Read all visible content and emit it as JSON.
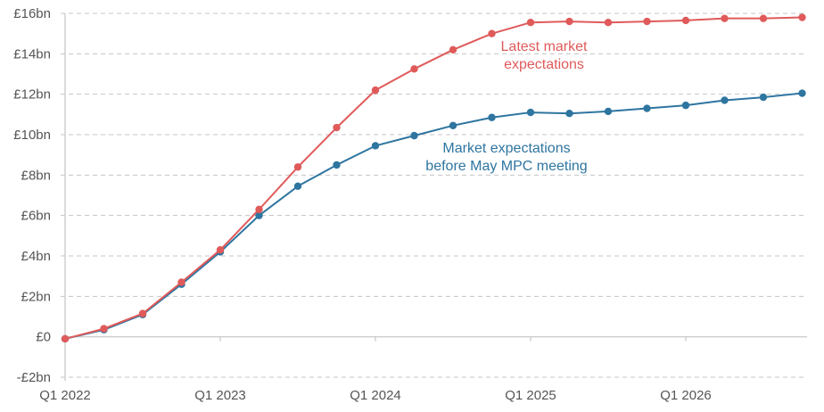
{
  "chart_data": {
    "type": "line",
    "title": "",
    "xlabel": "",
    "ylabel": "",
    "x": [
      "Q1 2022",
      "Q2 2022",
      "Q3 2022",
      "Q4 2022",
      "Q1 2023",
      "Q2 2023",
      "Q3 2023",
      "Q4 2023",
      "Q1 2024",
      "Q2 2024",
      "Q3 2024",
      "Q4 2024",
      "Q1 2025",
      "Q2 2025",
      "Q3 2025",
      "Q4 2025",
      "Q1 2026",
      "Q2 2026",
      "Q3 2026",
      "Q4 2026"
    ],
    "x_tick_labels": [
      "Q1 2022",
      "Q1 2023",
      "Q1 2024",
      "Q1 2025",
      "Q1 2026"
    ],
    "y_ticks": [
      -2,
      0,
      2,
      4,
      6,
      8,
      10,
      12,
      14,
      16
    ],
    "y_tick_labels": [
      "-£2bn",
      "£0",
      "£2bn",
      "£4bn",
      "£6bn",
      "£8bn",
      "£10bn",
      "£12bn",
      "£14bn",
      "£16bn"
    ],
    "ylim": [
      -2,
      16
    ],
    "grid": true,
    "series": [
      {
        "name": "Market expectations before May MPC meeting",
        "annotation": [
          "Market expectations",
          "before May MPC meeting"
        ],
        "color": "#2e75a0",
        "values": [
          -0.1,
          0.35,
          1.1,
          2.6,
          4.2,
          6.0,
          7.45,
          8.5,
          9.45,
          9.95,
          10.45,
          10.85,
          11.1,
          11.05,
          11.15,
          11.3,
          11.45,
          11.7,
          11.85,
          12.05
        ]
      },
      {
        "name": "Latest market expectations",
        "annotation": [
          "Latest market",
          "expectations"
        ],
        "color": "#e05a5a",
        "values": [
          -0.1,
          0.4,
          1.15,
          2.7,
          4.3,
          6.3,
          8.4,
          10.35,
          12.2,
          13.25,
          14.2,
          15.0,
          15.55,
          15.6,
          15.55,
          15.6,
          15.65,
          15.75,
          15.75,
          15.8
        ]
      }
    ]
  }
}
